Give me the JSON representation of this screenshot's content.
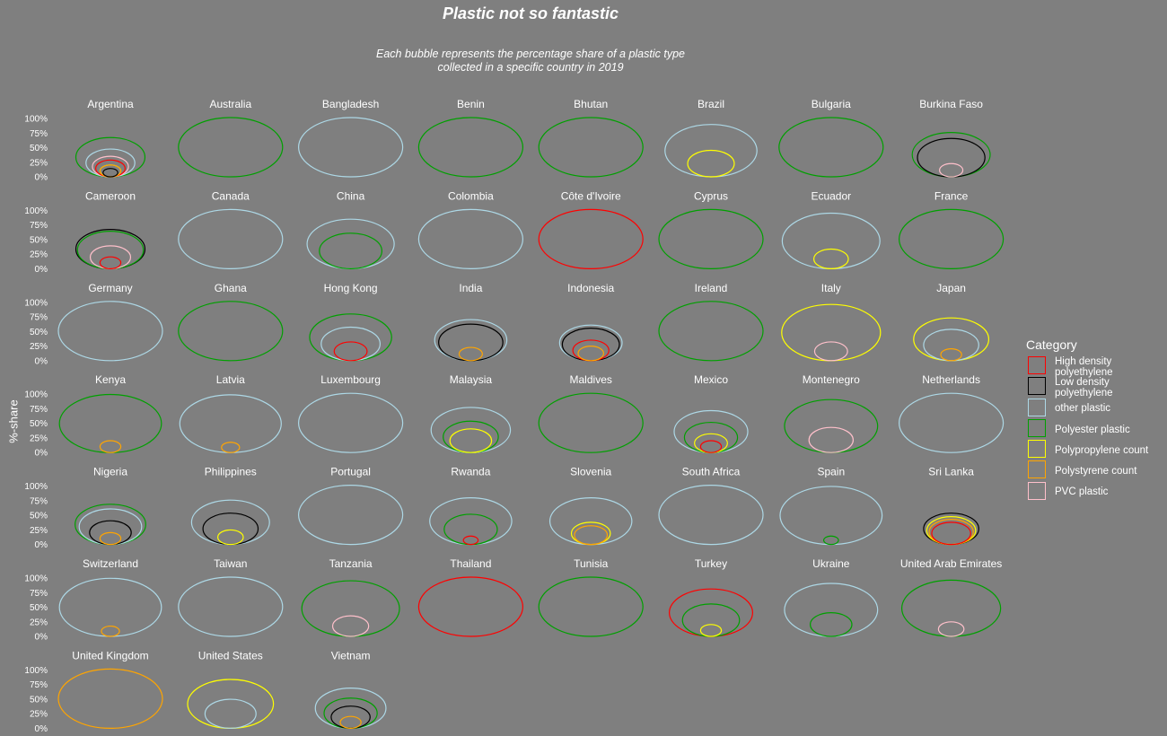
{
  "title": "Plastic not so fantastic",
  "subtitle_lines": [
    "Each bubble represents the percentage share of a plastic type",
    "collected in a specific country in 2019"
  ],
  "ylabel": "%-share",
  "yticks": [
    "100%",
    "75%",
    "50%",
    "25%",
    "0%"
  ],
  "legend": {
    "title": "Category",
    "items": [
      {
        "label": "High density polyethylene",
        "color": "#ff0000"
      },
      {
        "label": "Low density polyethylene",
        "color": "#000000"
      },
      {
        "label": "other plastic",
        "color": "#add8e6"
      },
      {
        "label": "Polyester plastic",
        "color": "#00a000"
      },
      {
        "label": "Polypropylene count",
        "color": "#ffff00"
      },
      {
        "label": "Polystyrene count",
        "color": "#ffa500"
      },
      {
        "label": "PVC plastic",
        "color": "#ffc0cb"
      }
    ]
  },
  "chart_data": {
    "type": "bubble",
    "ylim": [
      0,
      100
    ],
    "series": [
      "High density polyethylene",
      "Low density polyethylene",
      "other plastic",
      "Polyester plastic",
      "Polypropylene count",
      "Polystyrene count",
      "PVC plastic"
    ],
    "facets": [
      {
        "country": "Argentina",
        "values": [
          8,
          2,
          22,
          44,
          4,
          4,
          12
        ]
      },
      {
        "country": "Australia",
        "values": [
          0,
          0,
          0,
          100,
          0,
          0,
          0
        ]
      },
      {
        "country": "Bangladesh",
        "values": [
          0,
          0,
          100,
          0,
          0,
          0,
          0
        ]
      },
      {
        "country": "Benin",
        "values": [
          0,
          0,
          0,
          100,
          0,
          0,
          0
        ]
      },
      {
        "country": "Bhutan",
        "values": [
          0,
          0,
          0,
          100,
          0,
          0,
          0
        ]
      },
      {
        "country": "Brazil",
        "values": [
          0,
          0,
          78,
          0,
          20,
          0,
          0
        ]
      },
      {
        "country": "Bulgaria",
        "values": [
          0,
          0,
          0,
          100,
          0,
          0,
          0
        ]
      },
      {
        "country": "Burkina Faso",
        "values": [
          0,
          42,
          0,
          56,
          0,
          0,
          5
        ]
      },
      {
        "country": "Cameroon",
        "values": [
          4,
          44,
          0,
          40,
          0,
          0,
          15
        ]
      },
      {
        "country": "Canada",
        "values": [
          0,
          0,
          100,
          0,
          0,
          0,
          0
        ]
      },
      {
        "country": "China",
        "values": [
          0,
          0,
          70,
          36,
          0,
          0,
          0
        ]
      },
      {
        "country": "Colombia",
        "values": [
          0,
          0,
          100,
          0,
          0,
          0,
          0
        ]
      },
      {
        "country": "Côte d'Ivoire",
        "values": [
          100,
          0,
          0,
          0,
          0,
          0,
          0
        ]
      },
      {
        "country": "Cyprus",
        "values": [
          0,
          0,
          0,
          100,
          0,
          0,
          0
        ]
      },
      {
        "country": "Ecuador",
        "values": [
          0,
          0,
          88,
          0,
          11,
          0,
          0
        ]
      },
      {
        "country": "France",
        "values": [
          0,
          0,
          0,
          100,
          0,
          0,
          0
        ]
      },
      {
        "country": "Germany",
        "values": [
          0,
          0,
          100,
          0,
          0,
          0,
          0
        ]
      },
      {
        "country": "Ghana",
        "values": [
          0,
          0,
          0,
          100,
          0,
          0,
          0
        ]
      },
      {
        "country": "Hong Kong",
        "values": [
          10,
          0,
          32,
          62,
          0,
          0,
          0
        ]
      },
      {
        "country": "India",
        "values": [
          0,
          38,
          48,
          0,
          0,
          5,
          0
        ]
      },
      {
        "country": "Indonesia",
        "values": [
          12,
          30,
          36,
          0,
          0,
          6,
          0
        ]
      },
      {
        "country": "Ireland",
        "values": [
          0,
          0,
          0,
          100,
          0,
          0,
          0
        ]
      },
      {
        "country": "Italy",
        "values": [
          0,
          0,
          0,
          0,
          90,
          0,
          10
        ]
      },
      {
        "country": "Japan",
        "values": [
          0,
          0,
          28,
          0,
          52,
          4,
          0
        ]
      },
      {
        "country": "Kenya",
        "values": [
          0,
          0,
          0,
          96,
          0,
          4,
          0
        ]
      },
      {
        "country": "Latvia",
        "values": [
          0,
          0,
          95,
          0,
          0,
          3,
          0
        ]
      },
      {
        "country": "Luxembourg",
        "values": [
          0,
          0,
          100,
          0,
          0,
          0,
          0
        ]
      },
      {
        "country": "Malaysia",
        "values": [
          0,
          0,
          58,
          28,
          16,
          0,
          0
        ]
      },
      {
        "country": "Maldives",
        "values": [
          0,
          0,
          0,
          100,
          0,
          0,
          0
        ]
      },
      {
        "country": "Mexico",
        "values": [
          4,
          0,
          50,
          26,
          10,
          0,
          0
        ]
      },
      {
        "country": "Montenegro",
        "values": [
          0,
          0,
          0,
          80,
          0,
          0,
          18
        ]
      },
      {
        "country": "Netherlands",
        "values": [
          0,
          0,
          100,
          0,
          0,
          0,
          0
        ]
      },
      {
        "country": "Nigeria",
        "values": [
          0,
          16,
          36,
          46,
          0,
          4,
          0
        ]
      },
      {
        "country": "Philippines",
        "values": [
          0,
          28,
          56,
          0,
          6,
          0,
          0
        ]
      },
      {
        "country": "Portugal",
        "values": [
          0,
          0,
          100,
          0,
          0,
          0,
          0
        ]
      },
      {
        "country": "Rwanda",
        "values": [
          2,
          0,
          62,
          26,
          0,
          0,
          0
        ]
      },
      {
        "country": "Slovenia",
        "values": [
          0,
          0,
          62,
          0,
          14,
          10,
          0
        ]
      },
      {
        "country": "South Africa",
        "values": [
          0,
          0,
          100,
          0,
          0,
          0,
          0
        ]
      },
      {
        "country": "Spain",
        "values": [
          0,
          0,
          96,
          2,
          0,
          0,
          0
        ]
      },
      {
        "country": "Sri Lanka",
        "values": [
          14,
          28,
          0,
          0,
          22,
          18,
          0
        ]
      },
      {
        "country": "Switzerland",
        "values": [
          0,
          0,
          96,
          0,
          0,
          3,
          0
        ]
      },
      {
        "country": "Taiwan",
        "values": [
          0,
          0,
          100,
          0,
          0,
          0,
          0
        ]
      },
      {
        "country": "Tanzania",
        "values": [
          0,
          0,
          0,
          88,
          0,
          0,
          12
        ]
      },
      {
        "country": "Thailand",
        "values": [
          100,
          0,
          0,
          0,
          0,
          0,
          0
        ]
      },
      {
        "country": "Tunisia",
        "values": [
          0,
          0,
          0,
          100,
          0,
          0,
          0
        ]
      },
      {
        "country": "Turkey",
        "values": [
          64,
          0,
          0,
          30,
          4,
          0,
          0
        ]
      },
      {
        "country": "Ukraine",
        "values": [
          0,
          0,
          80,
          16,
          0,
          0,
          0
        ]
      },
      {
        "country": "United Arab Emirates",
        "values": [
          0,
          0,
          0,
          90,
          0,
          0,
          6
        ]
      },
      {
        "country": "United Kingdom",
        "values": [
          0,
          0,
          0,
          0,
          0,
          100,
          0
        ]
      },
      {
        "country": "United States",
        "values": [
          0,
          0,
          24,
          0,
          68,
          0,
          0
        ]
      },
      {
        "country": "Vietnam",
        "values": [
          0,
          14,
          46,
          26,
          0,
          4,
          0
        ]
      }
    ]
  }
}
